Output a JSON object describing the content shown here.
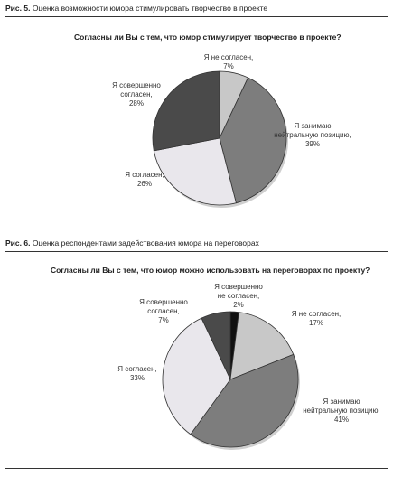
{
  "figures": [
    {
      "caption_num": "Рис. 5.",
      "caption_text": "Оценка возможности юмора стимулировать творчество в проекте",
      "question": "Согласны ли Вы с тем, что юмор стимулирует творчество в проекте?"
    },
    {
      "caption_num": "Рис. 6.",
      "caption_text": "Оценка респондентами задействования юмора на переговорах",
      "question": "Согласны ли Вы с тем, что юмор можно использовать на переговорах по проекту?"
    }
  ],
  "chart_data": [
    {
      "type": "pie",
      "title": "Согласны ли Вы с тем, что юмор стимулирует творчество в проекте?",
      "slices": [
        {
          "label": "Я не согласен,",
          "value": 7,
          "value_label": "7%",
          "color": "#c8c8c8"
        },
        {
          "label": "Я занимаю нейтральную позицию,",
          "value": 39,
          "value_label": "39%",
          "color": "#7d7d7d"
        },
        {
          "label": "Я согласен,",
          "value": 26,
          "value_label": "26%",
          "color": "#e9e7ec"
        },
        {
          "label": "Я совершенно согласен,",
          "value": 28,
          "value_label": "28%",
          "color": "#4a4a4a"
        }
      ]
    },
    {
      "type": "pie",
      "title": "Согласны ли Вы с тем, что юмор можно использовать на переговорах по проекту?",
      "slices": [
        {
          "label": "Я совершенно не согласен,",
          "value": 2,
          "value_label": "2%",
          "color": "#111111"
        },
        {
          "label": "Я не согласен,",
          "value": 17,
          "value_label": "17%",
          "color": "#c8c8c8"
        },
        {
          "label": "Я занимаю нейтральную позицию,",
          "value": 41,
          "value_label": "41%",
          "color": "#7d7d7d"
        },
        {
          "label": "Я согласен,",
          "value": 33,
          "value_label": "33%",
          "color": "#e9e7ec"
        },
        {
          "label": "Я совершенно согласен,",
          "value": 7,
          "value_label": "7%",
          "color": "#4a4a4a"
        }
      ]
    }
  ]
}
